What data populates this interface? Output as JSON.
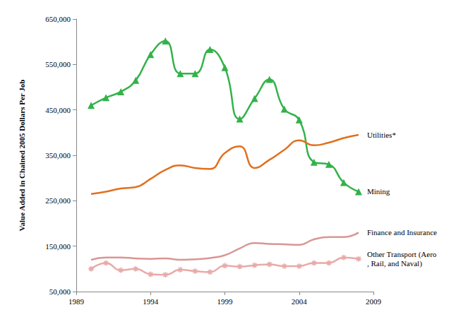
{
  "chart_data": {
    "type": "line",
    "ylabel": "Value Added in Chained 2005 Dollars Per Job",
    "x": [
      1990,
      1991,
      1992,
      1993,
      1994,
      1995,
      1996,
      1997,
      1998,
      1999,
      2000,
      2001,
      2002,
      2003,
      2004,
      2005,
      2006,
      2007,
      2008
    ],
    "xlim": [
      1989,
      2009
    ],
    "xticks": [
      1989,
      1994,
      1999,
      2004,
      2009
    ],
    "ylim": [
      50000,
      650000
    ],
    "yticks": [
      {
        "value": 50000,
        "label": "50,000"
      },
      {
        "value": 150000,
        "label": "150,000"
      },
      {
        "value": 250000,
        "label": "250,000"
      },
      {
        "value": 350000,
        "label": "350,000"
      },
      {
        "value": 450000,
        "label": "450,000"
      },
      {
        "value": 550000,
        "label": "550,000"
      },
      {
        "value": 650000,
        "label": "650,000"
      }
    ],
    "grid": false,
    "series": [
      {
        "name": "Mining",
        "color": "#33b24a",
        "marker": "triangle",
        "line_style": "solid",
        "values": [
          460000,
          477000,
          490000,
          515000,
          572000,
          602000,
          530000,
          530000,
          583000,
          543000,
          430000,
          475000,
          517000,
          452000,
          428000,
          335000,
          330000,
          290000,
          270000
        ]
      },
      {
        "name": "Utilities*",
        "color": "#e07020",
        "marker": "none",
        "line_style": "solid",
        "values": [
          265000,
          270000,
          277000,
          280000,
          298000,
          318000,
          328000,
          322000,
          320000,
          355000,
          370000,
          322000,
          340000,
          362000,
          383000,
          372000,
          378000,
          388000,
          395000
        ]
      },
      {
        "name": "Finance and Insurance",
        "color": "#d99694",
        "marker": "none",
        "line_style": "solid",
        "values": [
          120000,
          125000,
          125000,
          123000,
          122000,
          123000,
          120000,
          121000,
          124000,
          130000,
          145000,
          157000,
          155000,
          154000,
          153000,
          165000,
          170000,
          170000,
          180000
        ]
      },
      {
        "name": "Other Transport (Aero, Rail, and Naval)",
        "color": "#e8aaa8",
        "marker": "asterisk",
        "line_style": "solid",
        "values": [
          100000,
          113000,
          97000,
          100000,
          88000,
          87000,
          98000,
          95000,
          93000,
          107000,
          105000,
          108000,
          110000,
          106000,
          106000,
          113000,
          113000,
          125000,
          122000
        ]
      }
    ]
  }
}
